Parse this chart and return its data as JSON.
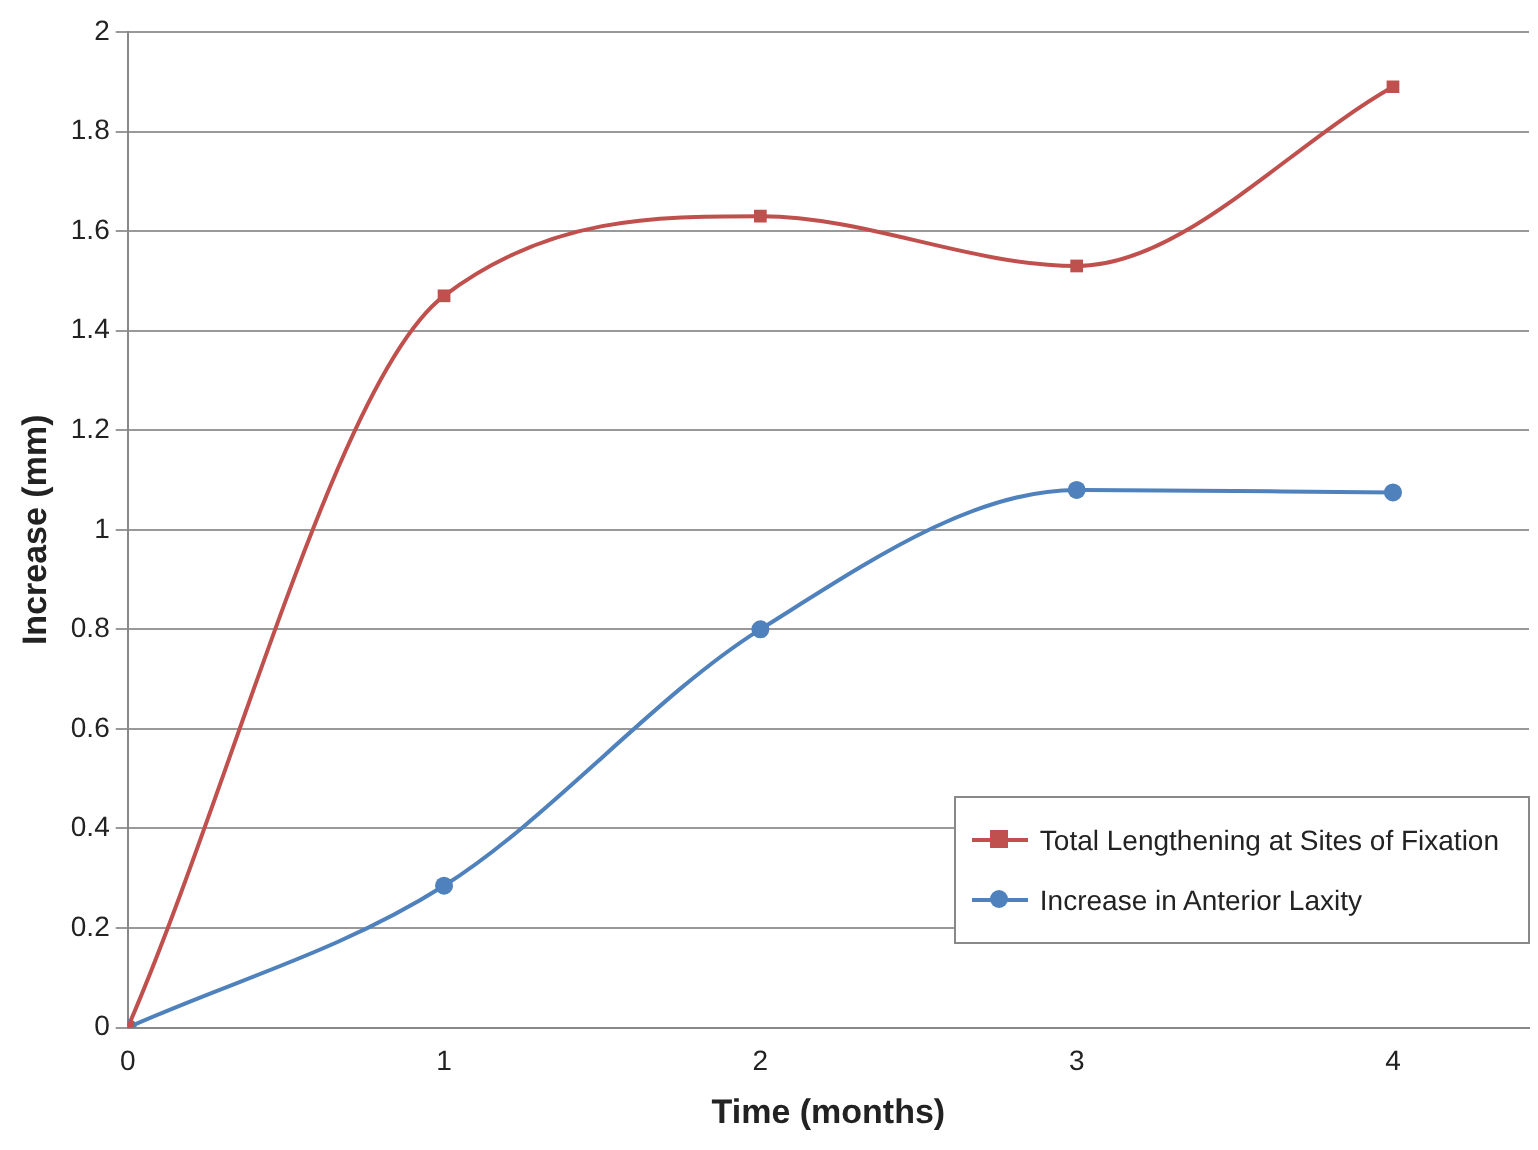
{
  "chart_data": {
    "type": "line",
    "xlabel": "Time (months)",
    "ylabel": "Increase (mm)",
    "x": [
      0,
      1,
      2,
      3,
      4
    ],
    "xlim": [
      0,
      4.43
    ],
    "xticks": [
      0,
      1,
      2,
      3,
      4
    ],
    "ylim": [
      0,
      2
    ],
    "yticks": [
      0,
      0.2,
      0.4,
      0.6,
      0.8,
      1,
      1.2,
      1.4,
      1.6,
      1.8,
      2
    ],
    "grid": "y",
    "legend": "bottom right",
    "line_style": "solid",
    "series": [
      {
        "name": "Total Lengthening at Sites of Fixation",
        "color": "#c0504d",
        "marker": "square",
        "values": [
          0,
          1.47,
          1.63,
          1.53,
          1.89
        ]
      },
      {
        "name": "Increase in Anterior Laxity",
        "color": "#4f81bd",
        "marker": "circle",
        "values": [
          0,
          0.285,
          0.8,
          1.08,
          1.075
        ]
      }
    ]
  }
}
